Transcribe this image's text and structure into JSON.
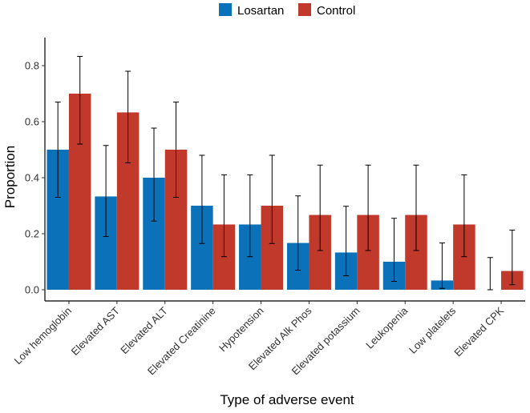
{
  "chart_data": {
    "type": "bar",
    "title": "",
    "xlabel": "Type of adverse event",
    "ylabel": "Proportion",
    "ylim": [
      0,
      0.9
    ],
    "yticks": [
      "0.0",
      "0.2",
      "0.4",
      "0.6",
      "0.8"
    ],
    "ytick_values": [
      0,
      0.2,
      0.4,
      0.6,
      0.8
    ],
    "grid": false,
    "legend": {
      "position": "top",
      "entries": [
        "Losartan",
        "Control"
      ]
    },
    "categories": [
      "Low hemoglobin",
      "Elevated AST",
      "Elevated ALT",
      "Elevated Creatinine",
      "Hypotension",
      "Elevated Alk Phos",
      "Elevated potassium",
      "Leukopenia",
      "Low platelets",
      "Elevated CPK"
    ],
    "series": [
      {
        "name": "Losartan",
        "color": "#0b72b9",
        "values": [
          0.5,
          0.333,
          0.4,
          0.3,
          0.233,
          0.167,
          0.133,
          0.1,
          0.033,
          0.0
        ],
        "ci_low": [
          0.33,
          0.19,
          0.245,
          0.165,
          0.118,
          0.07,
          0.05,
          0.03,
          0.005,
          0.0
        ],
        "ci_high": [
          0.67,
          0.515,
          0.577,
          0.48,
          0.41,
          0.335,
          0.298,
          0.255,
          0.167,
          0.115
        ]
      },
      {
        "name": "Control",
        "color": "#c0392b",
        "values": [
          0.7,
          0.633,
          0.5,
          0.233,
          0.3,
          0.267,
          0.267,
          0.267,
          0.233,
          0.067
        ],
        "ci_low": [
          0.52,
          0.453,
          0.33,
          0.118,
          0.165,
          0.14,
          0.14,
          0.14,
          0.118,
          0.018
        ],
        "ci_high": [
          0.833,
          0.78,
          0.67,
          0.41,
          0.48,
          0.445,
          0.445,
          0.445,
          0.41,
          0.213
        ]
      }
    ]
  }
}
